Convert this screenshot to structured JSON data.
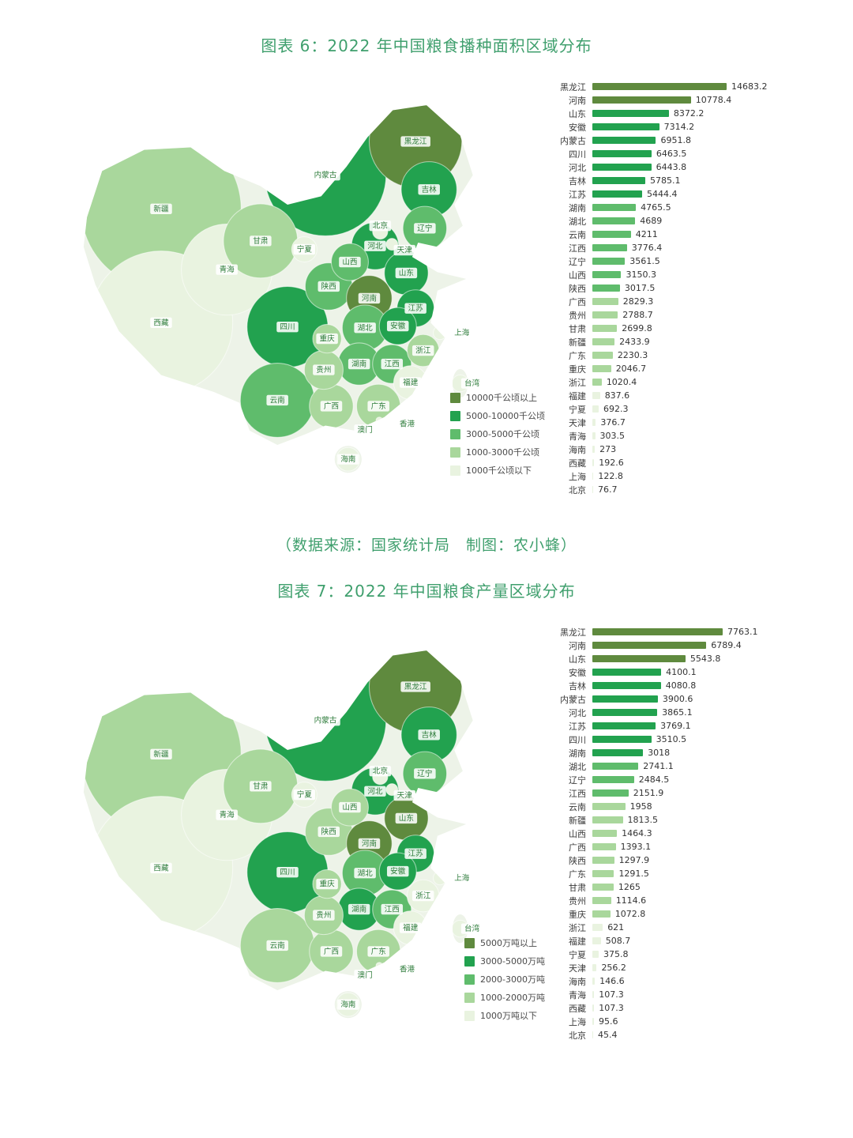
{
  "caption": "（数据来源：国家统计局　制图：农小蜂）",
  "colors": {
    "palette": [
      "#e9f3e0",
      "#a9d79c",
      "#5fbc6c",
      "#22a24f",
      "#5f8a3e"
    ],
    "title_green": "#3f9f6d",
    "map_base": "#edf3e8",
    "map_label_text": "#2f7d3c",
    "map_label_bg": "#ffffff"
  },
  "map_extras": [
    "台湾",
    "香港",
    "澳门"
  ],
  "chart_data": [
    {
      "type": "choropleth_map_with_bar",
      "title": "图表 6：2022 年中国粮食播种面积区域分布",
      "unit": "千公顷",
      "legend": [
        "10000千公顷以上",
        "5000-10000千公顷",
        "3000-5000千公顷",
        "1000-3000千公顷",
        "1000千公顷以下"
      ],
      "breaks": [
        1000,
        3000,
        5000,
        10000
      ],
      "bar_max_width": 170,
      "provinces": [
        {
          "name": "黑龙江",
          "value": "14683.2"
        },
        {
          "name": "河南",
          "value": "10778.4"
        },
        {
          "name": "山东",
          "value": "8372.2"
        },
        {
          "name": "安徽",
          "value": "7314.2"
        },
        {
          "name": "内蒙古",
          "value": "6951.8"
        },
        {
          "name": "四川",
          "value": "6463.5"
        },
        {
          "name": "河北",
          "value": "6443.8"
        },
        {
          "name": "吉林",
          "value": "5785.1"
        },
        {
          "name": "江苏",
          "value": "5444.4"
        },
        {
          "name": "湖南",
          "value": "4765.5"
        },
        {
          "name": "湖北",
          "value": "4689"
        },
        {
          "name": "云南",
          "value": "4211"
        },
        {
          "name": "江西",
          "value": "3776.4"
        },
        {
          "name": "辽宁",
          "value": "3561.5"
        },
        {
          "name": "山西",
          "value": "3150.3"
        },
        {
          "name": "陕西",
          "value": "3017.5"
        },
        {
          "name": "广西",
          "value": "2829.3"
        },
        {
          "name": "贵州",
          "value": "2788.7"
        },
        {
          "name": "甘肃",
          "value": "2699.8"
        },
        {
          "name": "新疆",
          "value": "2433.9"
        },
        {
          "name": "广东",
          "value": "2230.3"
        },
        {
          "name": "重庆",
          "value": "2046.7"
        },
        {
          "name": "浙江",
          "value": "1020.4"
        },
        {
          "name": "福建",
          "value": "837.6"
        },
        {
          "name": "宁夏",
          "value": "692.3"
        },
        {
          "name": "天津",
          "value": "376.7"
        },
        {
          "name": "青海",
          "value": "303.5"
        },
        {
          "name": "海南",
          "value": "273"
        },
        {
          "name": "西藏",
          "value": "192.6"
        },
        {
          "name": "上海",
          "value": "122.8"
        },
        {
          "name": "北京",
          "value": "76.7"
        }
      ]
    },
    {
      "type": "choropleth_map_with_bar",
      "title": "图表 7：2022 年中国粮食产量区域分布",
      "unit": "万吨",
      "legend": [
        "5000万吨以上",
        "3000-5000万吨",
        "2000-3000万吨",
        "1000-2000万吨",
        "1000万吨以下"
      ],
      "breaks": [
        1000,
        2000,
        3000,
        5000
      ],
      "bar_max_width": 165,
      "provinces": [
        {
          "name": "黑龙江",
          "value": "7763.1"
        },
        {
          "name": "河南",
          "value": "6789.4"
        },
        {
          "name": "山东",
          "value": "5543.8"
        },
        {
          "name": "安徽",
          "value": "4100.1"
        },
        {
          "name": "吉林",
          "value": "4080.8"
        },
        {
          "name": "内蒙古",
          "value": "3900.6"
        },
        {
          "name": "河北",
          "value": "3865.1"
        },
        {
          "name": "江苏",
          "value": "3769.1"
        },
        {
          "name": "四川",
          "value": "3510.5"
        },
        {
          "name": "湖南",
          "value": "3018"
        },
        {
          "name": "湖北",
          "value": "2741.1"
        },
        {
          "name": "辽宁",
          "value": "2484.5"
        },
        {
          "name": "江西",
          "value": "2151.9"
        },
        {
          "name": "云南",
          "value": "1958"
        },
        {
          "name": "新疆",
          "value": "1813.5"
        },
        {
          "name": "山西",
          "value": "1464.3"
        },
        {
          "name": "广西",
          "value": "1393.1"
        },
        {
          "name": "陕西",
          "value": "1297.9"
        },
        {
          "name": "广东",
          "value": "1291.5"
        },
        {
          "name": "甘肃",
          "value": "1265"
        },
        {
          "name": "贵州",
          "value": "1114.6"
        },
        {
          "name": "重庆",
          "value": "1072.8"
        },
        {
          "name": "浙江",
          "value": "621"
        },
        {
          "name": "福建",
          "value": "508.7"
        },
        {
          "name": "宁夏",
          "value": "375.8"
        },
        {
          "name": "天津",
          "value": "256.2"
        },
        {
          "name": "海南",
          "value": "146.6"
        },
        {
          "name": "青海",
          "value": "107.3"
        },
        {
          "name": "西藏",
          "value": "107.3"
        },
        {
          "name": "上海",
          "value": "95.6"
        },
        {
          "name": "北京",
          "value": "45.4"
        }
      ]
    }
  ]
}
